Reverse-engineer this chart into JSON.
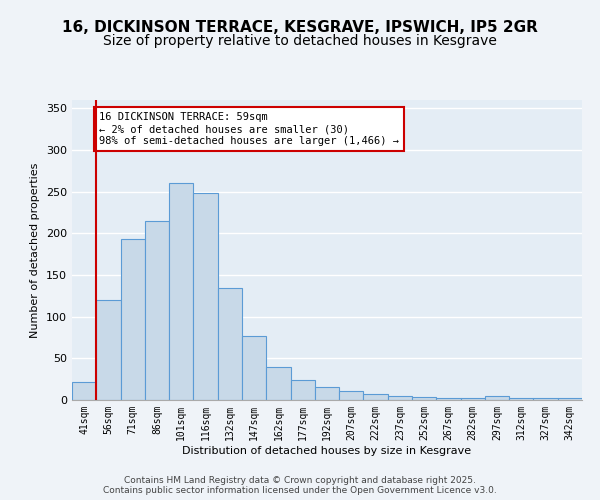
{
  "title": "16, DICKINSON TERRACE, KESGRAVE, IPSWICH, IP5 2GR",
  "subtitle": "Size of property relative to detached houses in Kesgrave",
  "xlabel": "Distribution of detached houses by size in Kesgrave",
  "ylabel": "Number of detached properties",
  "categories": [
    "41sqm",
    "56sqm",
    "71sqm",
    "86sqm",
    "101sqm",
    "116sqm",
    "132sqm",
    "147sqm",
    "162sqm",
    "177sqm",
    "192sqm",
    "207sqm",
    "222sqm",
    "237sqm",
    "252sqm",
    "267sqm",
    "282sqm",
    "297sqm",
    "312sqm",
    "327sqm",
    "342sqm"
  ],
  "values": [
    22,
    120,
    193,
    215,
    260,
    248,
    135,
    77,
    40,
    24,
    16,
    11,
    7,
    5,
    4,
    3,
    2,
    5,
    2,
    3,
    3
  ],
  "bar_color": "#c8d9e8",
  "bar_edge_color": "#5b9bd5",
  "annotation_text": "16 DICKINSON TERRACE: 59sqm\n← 2% of detached houses are smaller (30)\n98% of semi-detached houses are larger (1,466) →",
  "annotation_box_color": "#ffffff",
  "annotation_box_edge": "#cc0000",
  "red_line_x": 0.5,
  "ylim": [
    0,
    360
  ],
  "yticks": [
    0,
    50,
    100,
    150,
    200,
    250,
    300,
    350
  ],
  "footer": "Contains HM Land Registry data © Crown copyright and database right 2025.\nContains public sector information licensed under the Open Government Licence v3.0.",
  "bg_color": "#eff3f8",
  "plot_bg_color": "#e4edf5",
  "grid_color": "#ffffff",
  "title_fontsize": 11,
  "subtitle_fontsize": 10,
  "ann_fontsize": 7.5,
  "tick_fontsize": 7,
  "axis_label_fontsize": 8
}
